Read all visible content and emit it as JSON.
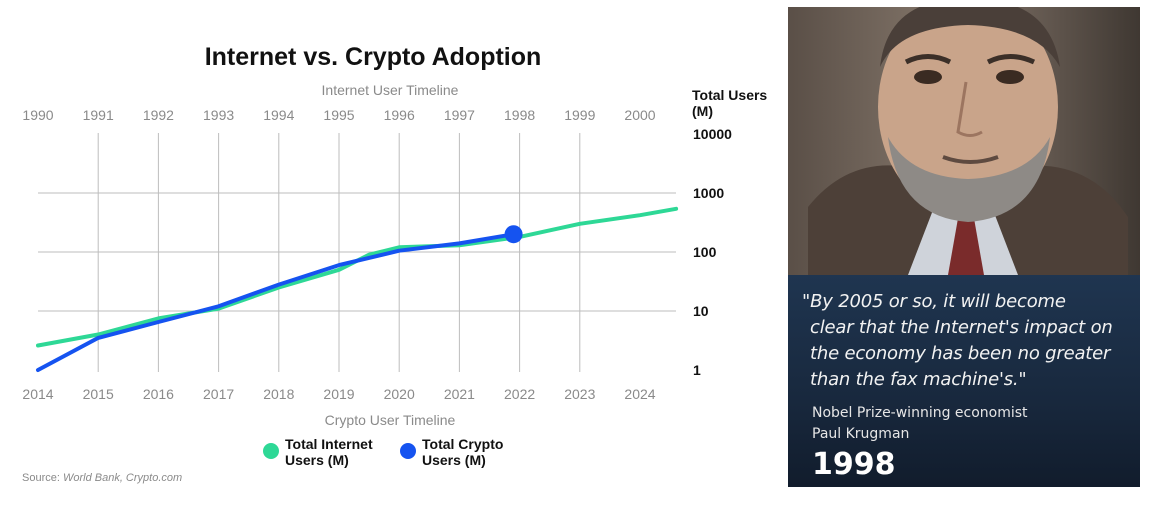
{
  "chart_data": {
    "type": "line",
    "title": "Internet vs. Crypto Adoption",
    "top_axis_title": "Internet User Timeline",
    "bottom_axis_title": "Crypto User Timeline",
    "top_ticks": [
      "1990",
      "1991",
      "1992",
      "1993",
      "1994",
      "1995",
      "1996",
      "1997",
      "1998",
      "1999",
      "2000"
    ],
    "bottom_ticks": [
      "2014",
      "2015",
      "2016",
      "2017",
      "2018",
      "2019",
      "2020",
      "2021",
      "2022",
      "2023",
      "2024"
    ],
    "y_label_line1": "Total Users",
    "y_label_line2": "(M)",
    "y_scale": "log",
    "y_ticks": [
      "1",
      "10",
      "100",
      "1000",
      "10000"
    ],
    "ylim": [
      1,
      10000
    ],
    "grid": true,
    "legend_position": "bottom",
    "series": [
      {
        "name": "Total Internet Users (M)",
        "legend_line1": "Total Internet",
        "legend_line2": "Users (M)",
        "color": "#2ed896",
        "x_axis": "top",
        "x": [
          1990,
          1991,
          1992,
          1993,
          1994,
          1995,
          1995.5,
          1996,
          1997,
          1998,
          1999,
          2000,
          2000.6
        ],
        "y": [
          2.6,
          4.0,
          7.5,
          11,
          25,
          50,
          90,
          120,
          130,
          180,
          300,
          420,
          540
        ]
      },
      {
        "name": "Total Crypto Users (M)",
        "legend_line1": "Total Crypto",
        "legend_line2": "Users (M)",
        "color": "#1553f0",
        "x_axis": "bottom",
        "x": [
          2014,
          2015,
          2016,
          2017,
          2018,
          2019,
          2020,
          2021,
          2021.9
        ],
        "y": [
          1.0,
          3.5,
          6.5,
          12,
          28,
          60,
          105,
          140,
          200
        ],
        "marker_last": true
      }
    ],
    "source_prefix": "Source: ",
    "source_text": "World Bank, Crypto.com"
  },
  "photo_panel": {
    "quote_lines": [
      "\"By 2005 or so, it will become",
      "clear that the Internet's impact on",
      "the economy has been no greater",
      "than the fax machine's.\""
    ],
    "attribution_lines": [
      "Nobel Prize-winning economist",
      "Paul Krugman"
    ],
    "year": "1998"
  }
}
